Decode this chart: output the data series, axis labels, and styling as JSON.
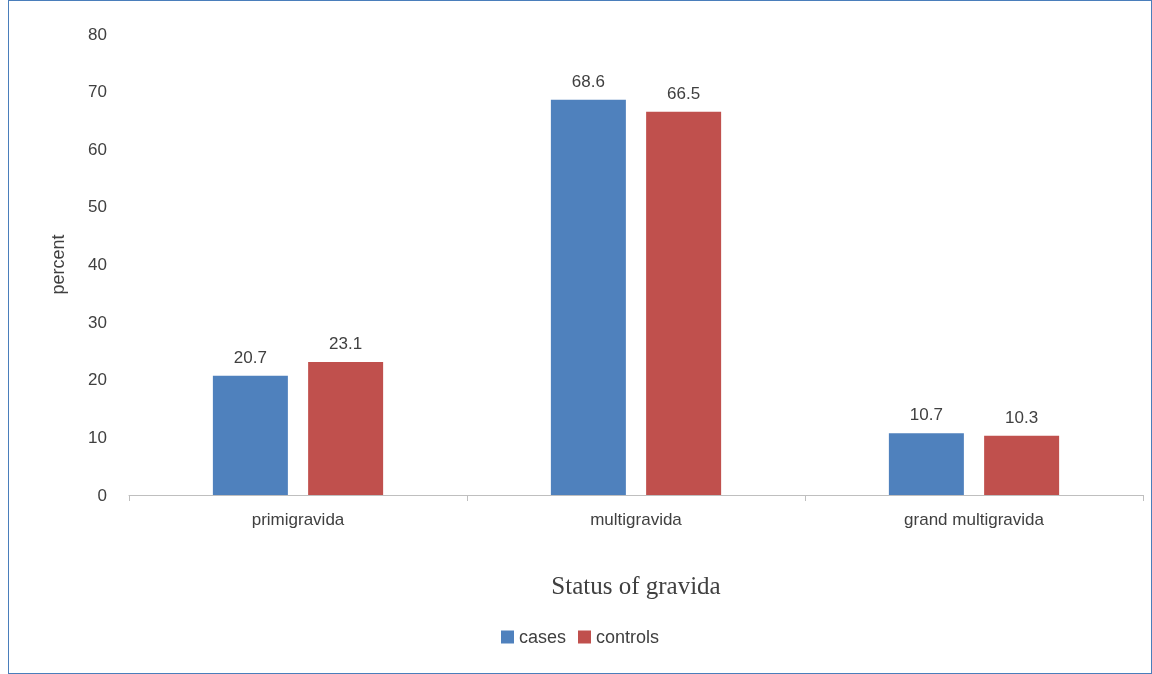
{
  "chart_data": {
    "type": "bar",
    "xlabel": "Status of gravida",
    "ylabel": "percent",
    "categories": [
      "primigravida",
      "multigravida",
      "grand multigravida"
    ],
    "series": [
      {
        "name": "cases",
        "color": "#4f81bd",
        "values": [
          20.7,
          68.6,
          10.7
        ]
      },
      {
        "name": "controls",
        "color": "#c0504d",
        "values": [
          23.1,
          66.5,
          10.3
        ]
      }
    ],
    "ylim": [
      0,
      80
    ],
    "yticks": [
      0,
      10,
      20,
      30,
      40,
      50,
      60,
      70,
      80
    ],
    "grid": false,
    "legend": "bottom",
    "data_labels": true
  }
}
